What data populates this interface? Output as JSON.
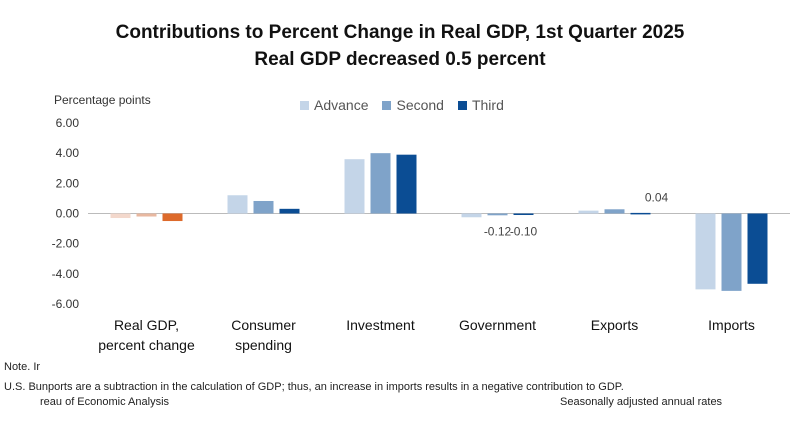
{
  "chart_data": {
    "type": "bar",
    "title": "Contributions to Percent Change in Real GDP, 1st Quarter 2025",
    "subtitle": "Real GDP decreased 0.5 percent",
    "ylabel": "Percentage points",
    "ylim": [
      -6,
      6
    ],
    "yticks": [
      "6.00",
      "4.00",
      "2.00",
      "0.00",
      "-2.00",
      "-4.00",
      "-6.00"
    ],
    "ytick_values": [
      6,
      4,
      2,
      0,
      -2,
      -4,
      -6
    ],
    "categories": [
      [
        "Real GDP,",
        "percent change"
      ],
      [
        "Consumer",
        "spending"
      ],
      [
        "Investment"
      ],
      [
        "Government"
      ],
      [
        "Exports"
      ],
      [
        "Imports"
      ]
    ],
    "series": [
      {
        "name": "Advance",
        "values": [
          -0.3,
          1.21,
          3.6,
          -0.25,
          0.19,
          -5.03
        ]
      },
      {
        "name": "Second",
        "values": [
          -0.2,
          0.83,
          4.0,
          -0.12,
          0.28,
          -5.13
        ]
      },
      {
        "name": "Third",
        "values": [
          -0.5,
          0.31,
          3.9,
          -0.1,
          0.04,
          -4.66
        ]
      }
    ],
    "data_labels": [
      {
        "text": "-0.12",
        "category": 3,
        "series": 1
      },
      {
        "text": "-0.10",
        "category": 3,
        "series": 2
      },
      {
        "text": "0.04",
        "category": 4,
        "series": 2
      }
    ],
    "legend_placement": "top",
    "grid": false
  },
  "colors": {
    "advance": "#c4d5e8",
    "second": "#7fa3c9",
    "third": "#0b4d94",
    "gdp_advance": "#f3d8cc",
    "gdp_second": "#e8b8a0",
    "gdp_third": "#dd6a2b",
    "axis": "#bbbbbb"
  },
  "footer": {
    "note": "Note. Ir",
    "imports_note": "U.S. Bunports are a subtraction in the calculation of GDP; thus, an increase in imports results in a negative contribution to GDP.",
    "source": "reau of Economic Analysis",
    "rates": "Seasonally adjusted annual rates"
  }
}
